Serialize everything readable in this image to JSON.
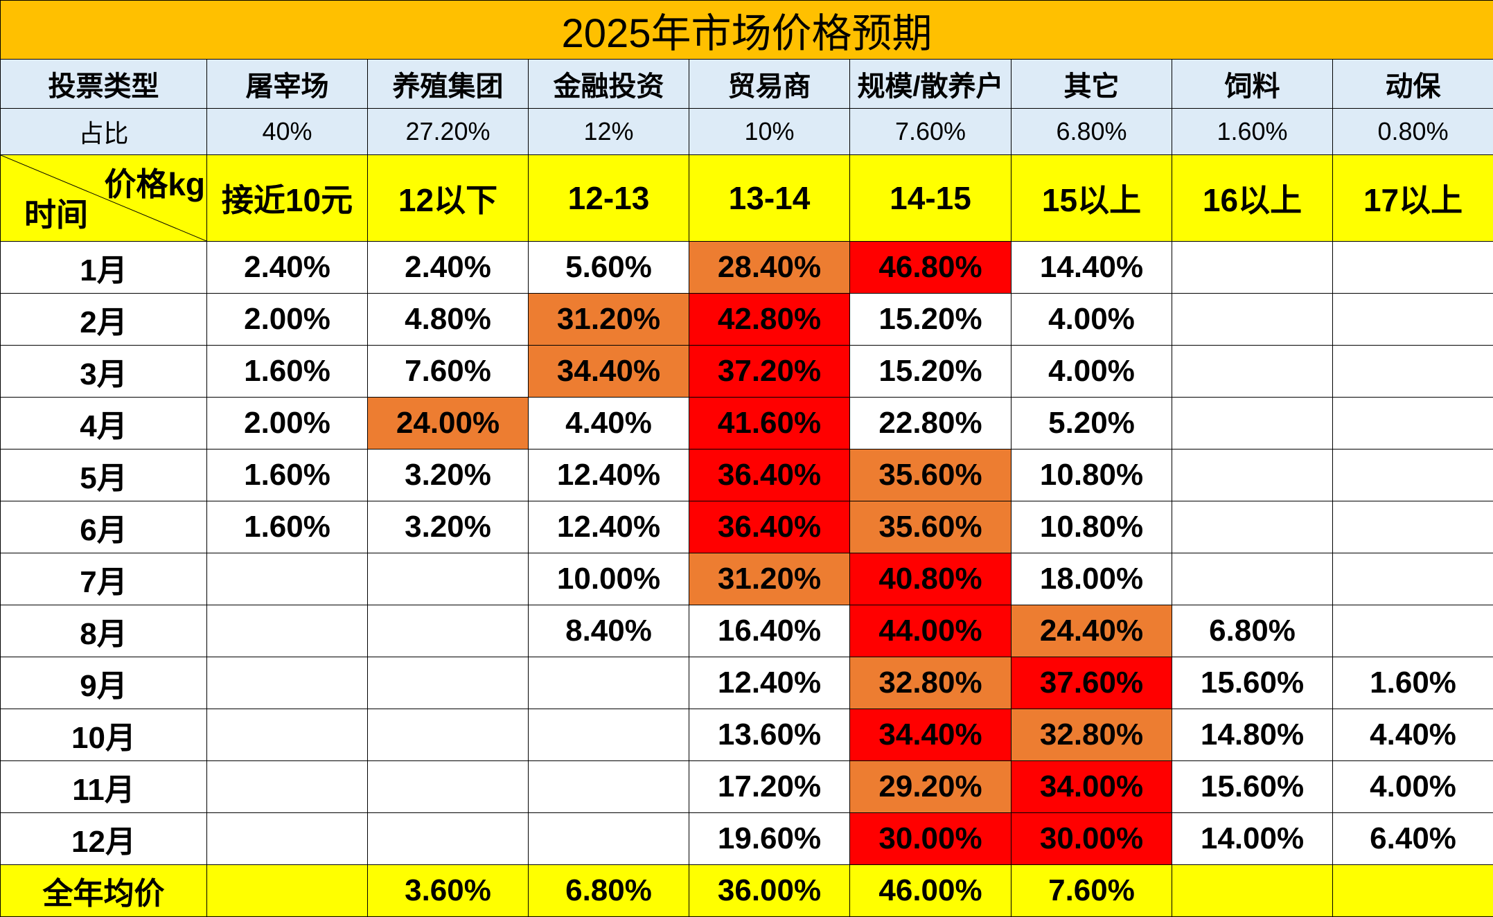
{
  "title": "2025年市场价格预期",
  "vote_type_label": "投票类型",
  "columns": [
    "屠宰场",
    "养殖集团",
    "金融投资",
    "贸易商",
    "规模/散养户",
    "其它",
    "饲料",
    "动保"
  ],
  "share_label": "占比",
  "shares": [
    "40%",
    "27.20%",
    "12%",
    "10%",
    "7.60%",
    "6.80%",
    "1.60%",
    "0.80%"
  ],
  "corner": {
    "price_label": "价格kg",
    "time_label": "时间"
  },
  "price_ranges": [
    "接近10元",
    "12以下",
    "12-13",
    "13-14",
    "14-15",
    "15以上",
    "16以上",
    "17以上"
  ],
  "colors": {
    "title_bg": "#FFC000",
    "header_bg": "#DDEBF7",
    "highlight_yellow": "#FFFF00",
    "orange": "#ED7D31",
    "red": "#FF0000"
  },
  "months": [
    {
      "label": "1月",
      "values": [
        "2.40%",
        "2.40%",
        "5.60%",
        "28.40%",
        "46.80%",
        "14.40%",
        "",
        ""
      ],
      "fills": [
        "",
        "",
        "",
        "orange",
        "red",
        "",
        "",
        ""
      ]
    },
    {
      "label": "2月",
      "values": [
        "2.00%",
        "4.80%",
        "31.20%",
        "42.80%",
        "15.20%",
        "4.00%",
        "",
        ""
      ],
      "fills": [
        "",
        "",
        "orange",
        "red",
        "",
        "",
        "",
        ""
      ]
    },
    {
      "label": "3月",
      "values": [
        "1.60%",
        "7.60%",
        "34.40%",
        "37.20%",
        "15.20%",
        "4.00%",
        "",
        ""
      ],
      "fills": [
        "",
        "",
        "orange",
        "red",
        "",
        "",
        "",
        ""
      ]
    },
    {
      "label": "4月",
      "values": [
        "2.00%",
        "24.00%",
        "4.40%",
        "41.60%",
        "22.80%",
        "5.20%",
        "",
        ""
      ],
      "fills": [
        "",
        "orange",
        "",
        "red",
        "",
        "",
        "",
        ""
      ]
    },
    {
      "label": "5月",
      "values": [
        "1.60%",
        "3.20%",
        "12.40%",
        "36.40%",
        "35.60%",
        "10.80%",
        "",
        ""
      ],
      "fills": [
        "",
        "",
        "",
        "red",
        "orange",
        "",
        "",
        ""
      ]
    },
    {
      "label": "6月",
      "values": [
        "1.60%",
        "3.20%",
        "12.40%",
        "36.40%",
        "35.60%",
        "10.80%",
        "",
        ""
      ],
      "fills": [
        "",
        "",
        "",
        "red",
        "orange",
        "",
        "",
        ""
      ]
    },
    {
      "label": "7月",
      "values": [
        "",
        "",
        "10.00%",
        "31.20%",
        "40.80%",
        "18.00%",
        "",
        ""
      ],
      "fills": [
        "",
        "",
        "",
        "orange",
        "red",
        "",
        "",
        ""
      ]
    },
    {
      "label": "8月",
      "values": [
        "",
        "",
        "8.40%",
        "16.40%",
        "44.00%",
        "24.40%",
        "6.80%",
        ""
      ],
      "fills": [
        "",
        "",
        "",
        "",
        "red",
        "orange",
        "",
        ""
      ]
    },
    {
      "label": "9月",
      "values": [
        "",
        "",
        "",
        "12.40%",
        "32.80%",
        "37.60%",
        "15.60%",
        "1.60%"
      ],
      "fills": [
        "",
        "",
        "",
        "",
        "orange",
        "red",
        "",
        ""
      ]
    },
    {
      "label": "10月",
      "values": [
        "",
        "",
        "",
        "13.60%",
        "34.40%",
        "32.80%",
        "14.80%",
        "4.40%"
      ],
      "fills": [
        "",
        "",
        "",
        "",
        "red",
        "orange",
        "",
        ""
      ]
    },
    {
      "label": "11月",
      "values": [
        "",
        "",
        "",
        "17.20%",
        "29.20%",
        "34.00%",
        "15.60%",
        "4.00%"
      ],
      "fills": [
        "",
        "",
        "",
        "",
        "orange",
        "red",
        "",
        ""
      ]
    },
    {
      "label": "12月",
      "values": [
        "",
        "",
        "",
        "19.60%",
        "30.00%",
        "30.00%",
        "14.00%",
        "6.40%"
      ],
      "fills": [
        "",
        "",
        "",
        "",
        "red",
        "red",
        "",
        ""
      ]
    }
  ],
  "annual_avg": {
    "label": "全年均价",
    "values": [
      "",
      "3.60%",
      "6.80%",
      "36.00%",
      "46.00%",
      "7.60%",
      "",
      ""
    ]
  }
}
